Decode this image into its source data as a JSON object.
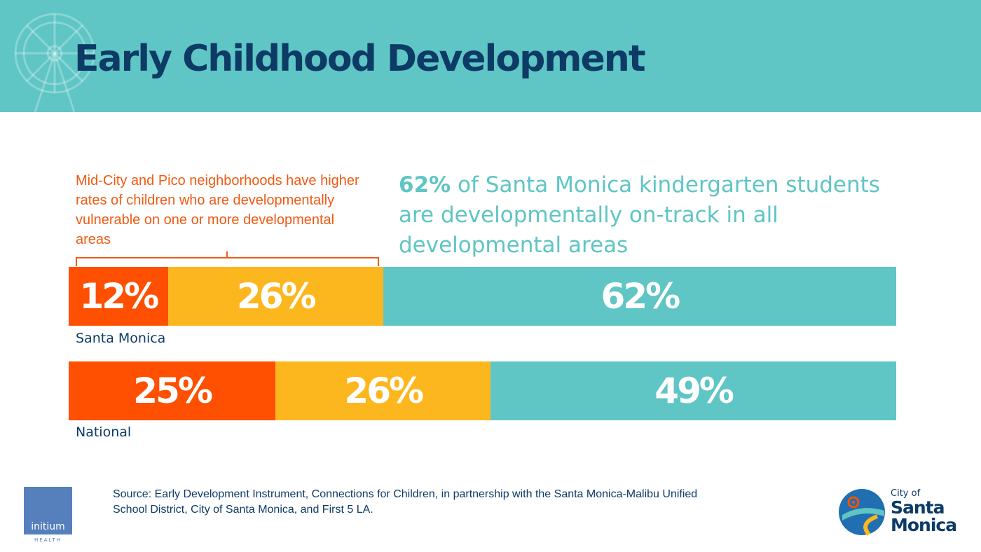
{
  "header": {
    "title": "Early Childhood Development"
  },
  "callout": {
    "text": "Mid-City and Pico neighborhoods have higher rates of children who are developmentally vulnerable on one or more developmental areas"
  },
  "headline": {
    "pct": "62%",
    "text": " of Santa Monica kindergarten students are developmentally on-track in all developmental areas"
  },
  "colors": {
    "vulnerable": "#fe5000",
    "at_risk": "#fdb71e",
    "on_track": "#5fc5c5",
    "title": "#0d3b66",
    "header_bg": "#5fc5c5"
  },
  "chart_data": {
    "type": "bar",
    "orientation": "horizontal-stacked",
    "unit": "%",
    "categories": [
      "Santa Monica",
      "National"
    ],
    "series": [
      {
        "values": [
          12,
          25
        ],
        "labels": [
          "12%",
          "25%"
        ],
        "color": "#fe5000"
      },
      {
        "values": [
          26,
          26
        ],
        "labels": [
          "26%",
          "26%"
        ],
        "color": "#fdb71e"
      },
      {
        "values": [
          62,
          49
        ],
        "labels": [
          "62%",
          "49%"
        ],
        "color": "#5fc5c5"
      }
    ],
    "xlim": [
      0,
      100
    ],
    "grid": false,
    "legend": "none"
  },
  "source": {
    "text": "Source: Early Development Instrument, Connections for Children, in partnership with the Santa Monica-Malibu Unified School District, City of Santa Monica, and First 5 LA."
  },
  "logos": {
    "initium_word": "initium",
    "initium_sub": "HEALTH",
    "city_of": "City of",
    "santa": "Santa",
    "monica": "Monica"
  }
}
